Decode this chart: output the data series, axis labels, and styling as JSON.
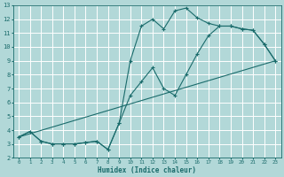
{
  "xlabel": "Humidex (Indice chaleur)",
  "ylabel": "",
  "bg_color": "#b2d8d8",
  "grid_color": "#ffffff",
  "line_color": "#1a6b6b",
  "xlim": [
    -0.5,
    23.5
  ],
  "ylim": [
    2,
    13
  ],
  "xticks": [
    0,
    1,
    2,
    3,
    4,
    5,
    6,
    7,
    8,
    9,
    10,
    11,
    12,
    13,
    14,
    15,
    16,
    17,
    18,
    19,
    20,
    21,
    22,
    23
  ],
  "yticks": [
    2,
    3,
    4,
    5,
    6,
    7,
    8,
    9,
    10,
    11,
    12,
    13
  ],
  "line1_x": [
    0,
    1,
    2,
    3,
    4,
    5,
    6,
    7,
    8,
    9,
    10,
    11,
    12,
    13,
    14,
    15,
    16,
    17,
    18,
    19,
    20,
    21,
    22,
    23
  ],
  "line1_y": [
    3.5,
    3.9,
    3.2,
    3.0,
    3.0,
    3.0,
    3.1,
    3.2,
    2.6,
    4.5,
    9.0,
    11.5,
    12.0,
    11.3,
    12.6,
    12.8,
    12.1,
    11.7,
    11.5,
    11.5,
    11.3,
    11.2,
    10.2,
    9.0
  ],
  "line2_x": [
    0,
    1,
    2,
    3,
    4,
    5,
    6,
    7,
    8,
    9,
    10,
    11,
    12,
    13,
    14,
    15,
    16,
    17,
    18,
    19,
    20,
    21,
    22,
    23
  ],
  "line2_y": [
    3.5,
    3.9,
    3.2,
    3.0,
    3.0,
    3.0,
    3.1,
    3.2,
    2.6,
    4.5,
    6.5,
    7.5,
    8.5,
    7.0,
    6.5,
    8.0,
    9.5,
    10.8,
    11.5,
    11.5,
    11.3,
    11.2,
    10.2,
    9.0
  ],
  "line3_x": [
    0,
    23
  ],
  "line3_y": [
    3.5,
    9.0
  ]
}
